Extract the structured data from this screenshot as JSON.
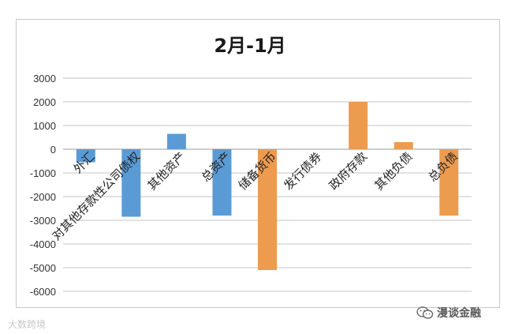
{
  "chart_data": {
    "type": "bar",
    "title": "2月-1月",
    "categories": [
      "外汇",
      "对其他存款性公司债权",
      "其他资产",
      "总资产",
      "储备货币",
      "发行债券",
      "政府存款",
      "其他负债",
      "总负债"
    ],
    "values": [
      -550,
      -2850,
      650,
      -2800,
      -5100,
      0,
      2000,
      300,
      -2800
    ],
    "bar_colors": [
      "#5b9bd5",
      "#5b9bd5",
      "#5b9bd5",
      "#5b9bd5",
      "#ed9b4f",
      "#ed9b4f",
      "#ed9b4f",
      "#ed9b4f",
      "#ed9b4f"
    ],
    "ylim": [
      -6000,
      3000
    ],
    "yticks": [
      3000,
      2000,
      1000,
      0,
      -1000,
      -2000,
      -3000,
      -4000,
      -5000,
      -6000
    ],
    "xlabel": "",
    "ylabel": "",
    "grid": true,
    "legend": "none"
  },
  "watermarks": {
    "left": "大数跨境",
    "right": "漫谈金融",
    "right_icon": "wechat-icon"
  }
}
